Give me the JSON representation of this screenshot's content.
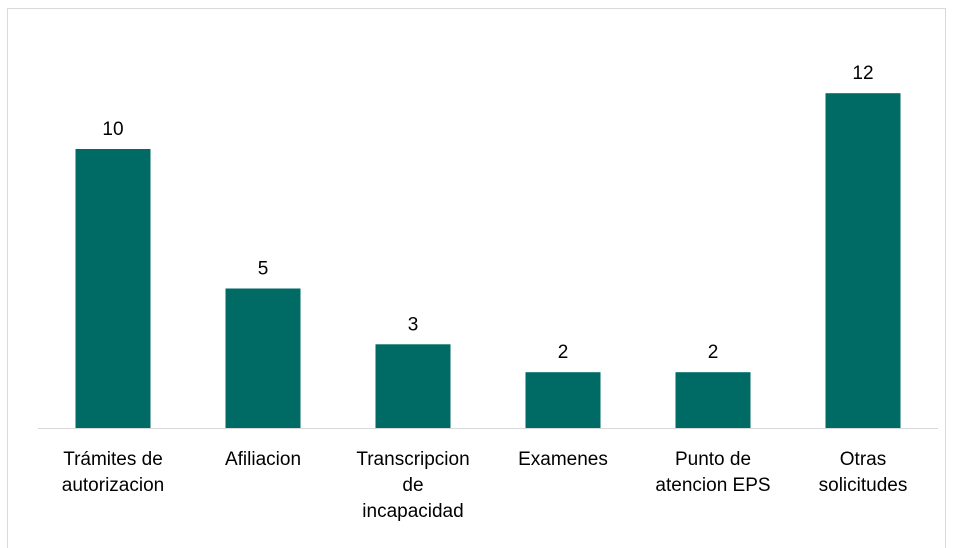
{
  "chart_data": {
    "type": "bar",
    "categories": [
      [
        "Trámites de",
        "autorizacion"
      ],
      [
        "Afiliacion"
      ],
      [
        "Transcripcion",
        "de",
        "incapacidad"
      ],
      [
        "Examenes"
      ],
      [
        "Punto de",
        "atencion EPS"
      ],
      [
        "Otras",
        "solicitudes"
      ]
    ],
    "values": [
      10,
      5,
      3,
      2,
      2,
      12
    ],
    "bar_color": "#006a65",
    "axis_color": "#d9d9d9",
    "ylim": [
      0,
      14
    ],
    "grid": false,
    "data_labels": true
  }
}
